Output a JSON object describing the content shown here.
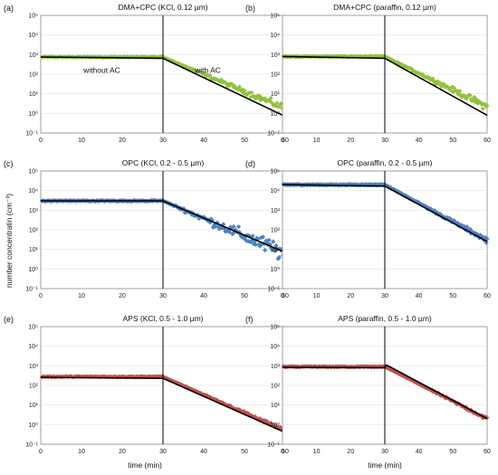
{
  "figure": {
    "ylabel": "number concentratin (cm⁻³)",
    "xlabel": "time (min)"
  },
  "chart_data": [
    {
      "type": "scatter",
      "label": "(a)",
      "title": "DMA+CPC (KCl, 0.12 µm)",
      "yscale": "log",
      "xlim": [
        0,
        60
      ],
      "ylim": [
        0.1,
        100000
      ],
      "xticks": [
        "0",
        "10",
        "20",
        "30",
        "40",
        "50",
        "60"
      ],
      "yticks": [
        "10⁻¹",
        "10⁰",
        "10¹",
        "10²",
        "10³",
        "10⁴",
        "10⁵"
      ],
      "marker_color": "#92c13d",
      "annotations": [
        {
          "text": "without AC"
        },
        {
          "text": "with AC"
        }
      ],
      "vline_x": 30,
      "series": [
        {
          "role": "measured",
          "plateau": 750,
          "end_value": 1.8,
          "scatter": 0.12
        },
        {
          "role": "fit",
          "x": [
            0,
            30,
            60
          ],
          "values": [
            750,
            650,
            0.7
          ]
        }
      ]
    },
    {
      "type": "scatter",
      "label": "(b)",
      "title": "DMA+CPC (paraffin, 0.12 µm)",
      "yscale": "log",
      "xlim": [
        0,
        60
      ],
      "ylim": [
        0.1,
        100000
      ],
      "xticks": [
        "0",
        "10",
        "20",
        "30",
        "40",
        "50",
        "60"
      ],
      "yticks": [
        "10⁻¹",
        "10⁰",
        "10¹",
        "10²",
        "10³",
        "10⁴",
        "10⁵"
      ],
      "marker_color": "#92c13d",
      "vline_x": 30,
      "series": [
        {
          "role": "measured",
          "plateau": 800,
          "end_value": 2.2,
          "scatter": 0.12
        },
        {
          "role": "fit",
          "x": [
            0,
            30,
            60
          ],
          "values": [
            800,
            650,
            0.8
          ]
        }
      ]
    },
    {
      "type": "scatter",
      "label": "(c)",
      "title": "OPC (KCl, 0.2 - 0.5 µm)",
      "yscale": "log",
      "xlim": [
        0,
        60
      ],
      "ylim": [
        0.1,
        100000
      ],
      "xticks": [
        "0",
        "10",
        "20",
        "30",
        "40",
        "50",
        "60"
      ],
      "yticks": [
        "10⁻¹",
        "10⁰",
        "10¹",
        "10²",
        "10³",
        "10⁴",
        "10⁵"
      ],
      "marker_color": "#4f81bd",
      "vline_x": 30,
      "series": [
        {
          "role": "measured",
          "plateau": 3000,
          "end_value": 6,
          "scatter": 0.3
        },
        {
          "role": "fit",
          "x": [
            0,
            30,
            60
          ],
          "values": [
            3000,
            3000,
            7
          ]
        }
      ]
    },
    {
      "type": "scatter",
      "label": "(d)",
      "title": "OPC (paraffin, 0.2 - 0.5 µm)",
      "yscale": "log",
      "xlim": [
        0,
        60
      ],
      "ylim": [
        0.1,
        100000
      ],
      "xticks": [
        "0",
        "10",
        "20",
        "30",
        "40",
        "50",
        "60"
      ],
      "yticks": [
        "10⁻¹",
        "10⁰",
        "10¹",
        "10²",
        "10³",
        "10⁴",
        "10⁵"
      ],
      "marker_color": "#4f81bd",
      "vline_x": 30,
      "series": [
        {
          "role": "measured",
          "plateau": 20000,
          "end_value": 30,
          "scatter": 0.08
        },
        {
          "role": "fit",
          "x": [
            0,
            30,
            60
          ],
          "values": [
            20000,
            17000,
            25
          ]
        }
      ]
    },
    {
      "type": "scatter",
      "label": "(e)",
      "title": "APS (KCl, 0.5 - 1.0 µm)",
      "yscale": "log",
      "xlim": [
        0,
        60
      ],
      "ylim": [
        0.1,
        100000
      ],
      "xticks": [
        "0",
        "10",
        "20",
        "30",
        "40",
        "50",
        "60"
      ],
      "yticks": [
        "10⁻¹",
        "10⁰",
        "10¹",
        "10²",
        "10³",
        "10⁴",
        "10⁵"
      ],
      "marker_color": "#c0504d",
      "vline_x": 30,
      "series": [
        {
          "role": "measured",
          "plateau": 280,
          "end_value": 0.5,
          "scatter": 0.06
        },
        {
          "role": "fit",
          "x": [
            0,
            30,
            60
          ],
          "values": [
            260,
            230,
            0.4
          ]
        }
      ]
    },
    {
      "type": "scatter",
      "label": "(f)",
      "title": "APS (paraffin, 0.5 - 1.0 µm)",
      "yscale": "log",
      "xlim": [
        0,
        60
      ],
      "ylim": [
        0.1,
        100000
      ],
      "xticks": [
        "0",
        "10",
        "20",
        "30",
        "40",
        "50",
        "60"
      ],
      "yticks": [
        "10⁻¹",
        "10⁰",
        "10¹",
        "10²",
        "10³",
        "10⁴",
        "10⁵"
      ],
      "marker_color": "#c0504d",
      "vline_x": 30,
      "series": [
        {
          "role": "measured",
          "plateau": 900,
          "end_value": 2,
          "scatter": 0.06
        },
        {
          "role": "fit",
          "x": [
            0,
            30,
            30.5,
            60
          ],
          "values": [
            850,
            800,
            1100,
            2
          ]
        }
      ]
    }
  ]
}
